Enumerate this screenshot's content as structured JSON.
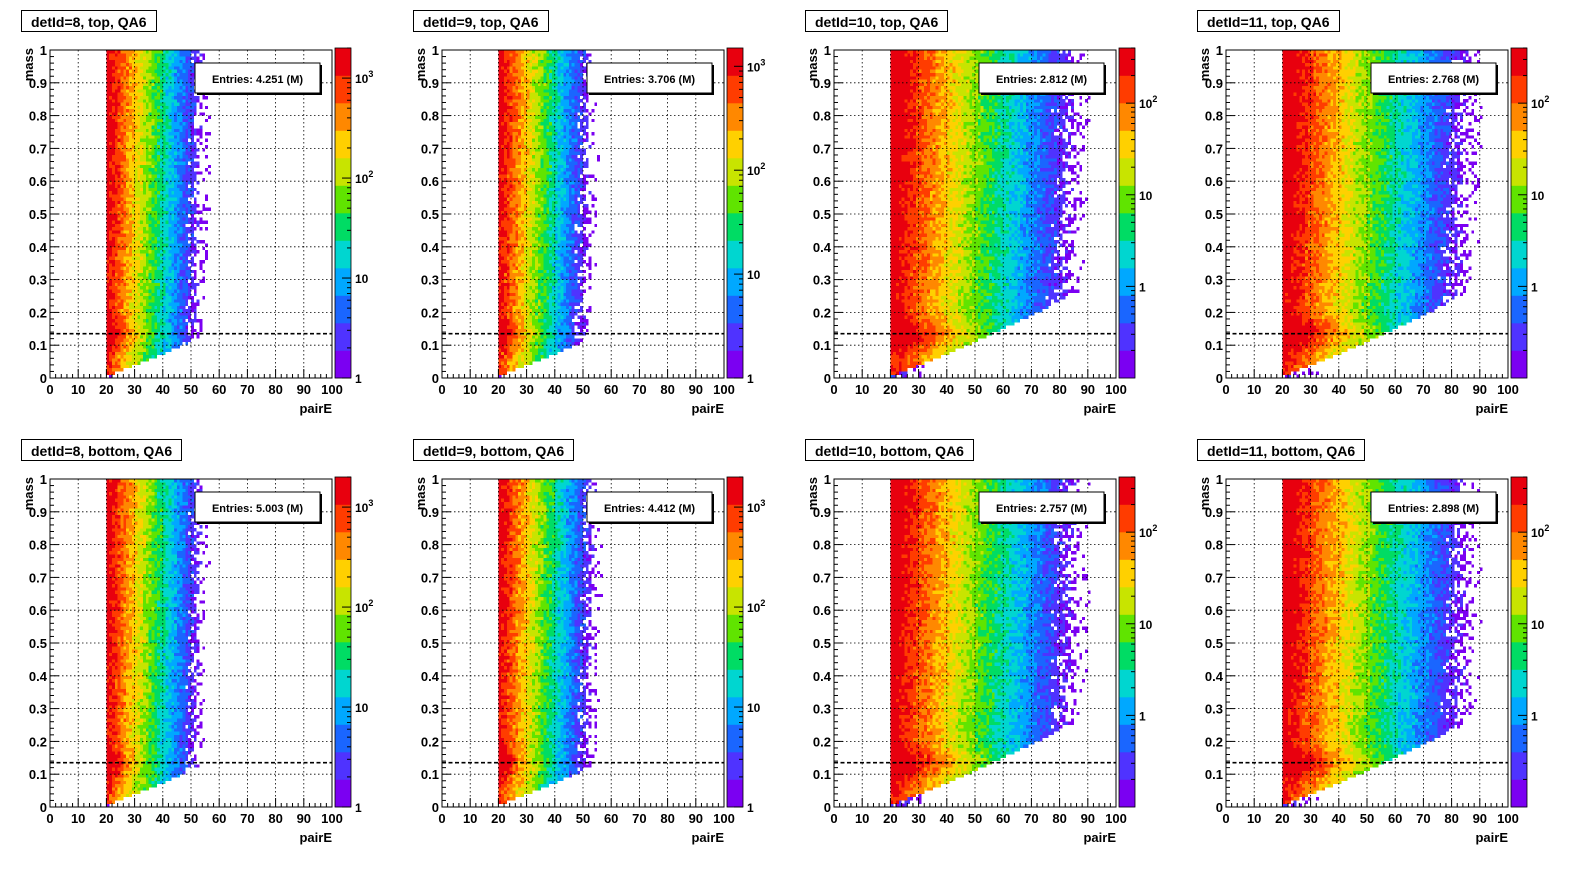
{
  "chart_data": [
    {
      "type": "heatmap",
      "title": "detId=8, top, QA6",
      "xlabel": "pairE",
      "ylabel": "mass",
      "xlim": [
        0,
        100
      ],
      "ylim": [
        0,
        1
      ],
      "x_ticks": [
        "0",
        "10",
        "20",
        "30",
        "40",
        "50",
        "60",
        "70",
        "80",
        "90",
        "100"
      ],
      "y_ticks": [
        "0",
        "0.1",
        "0.2",
        "0.3",
        "0.4",
        "0.5",
        "0.6",
        "0.7",
        "0.8",
        "0.9",
        "1"
      ],
      "entries_label": "Entries: 4.251 (M)",
      "z_scale": "log",
      "z_range": [
        1,
        2000
      ],
      "z_ticks": [
        {
          "value": 1,
          "label": "1"
        },
        {
          "value": 10,
          "label": "10"
        },
        {
          "value": 100,
          "label": "10",
          "exp": "2"
        },
        {
          "value": 1000,
          "label": "10",
          "exp": "3"
        }
      ],
      "pi0_line_mass": 0.135,
      "energy_threshold": 20,
      "grid": true
    },
    {
      "type": "heatmap",
      "title": "detId=9, top, QA6",
      "xlabel": "pairE",
      "ylabel": "mass",
      "xlim": [
        0,
        100
      ],
      "ylim": [
        0,
        1
      ],
      "x_ticks": [
        "0",
        "10",
        "20",
        "30",
        "40",
        "50",
        "60",
        "70",
        "80",
        "90",
        "100"
      ],
      "y_ticks": [
        "0",
        "0.1",
        "0.2",
        "0.3",
        "0.4",
        "0.5",
        "0.6",
        "0.7",
        "0.8",
        "0.9",
        "1"
      ],
      "entries_label": "Entries: 3.706 (M)",
      "z_scale": "log",
      "z_range": [
        1,
        1500
      ],
      "z_ticks": [
        {
          "value": 1,
          "label": "1"
        },
        {
          "value": 10,
          "label": "10"
        },
        {
          "value": 100,
          "label": "10",
          "exp": "2"
        },
        {
          "value": 1000,
          "label": "10",
          "exp": "3"
        }
      ],
      "pi0_line_mass": 0.135,
      "energy_threshold": 20,
      "grid": true
    },
    {
      "type": "heatmap",
      "title": "detId=10, top, QA6",
      "xlabel": "pairE",
      "ylabel": "mass",
      "xlim": [
        0,
        100
      ],
      "ylim": [
        0,
        1
      ],
      "x_ticks": [
        "0",
        "10",
        "20",
        "30",
        "40",
        "50",
        "60",
        "70",
        "80",
        "90",
        "100"
      ],
      "y_ticks": [
        "0",
        "0.1",
        "0.2",
        "0.3",
        "0.4",
        "0.5",
        "0.6",
        "0.7",
        "0.8",
        "0.9",
        "1"
      ],
      "entries_label": "Entries: 2.812 (M)",
      "z_scale": "log",
      "z_range": [
        0.1,
        400
      ],
      "z_ticks": [
        {
          "value": 1,
          "label": "1"
        },
        {
          "value": 10,
          "label": "10"
        },
        {
          "value": 100,
          "label": "10",
          "exp": "2"
        }
      ],
      "pi0_line_mass": 0.135,
      "energy_threshold": 20,
      "grid": true
    },
    {
      "type": "heatmap",
      "title": "detId=11, top, QA6",
      "xlabel": "pairE",
      "ylabel": "mass",
      "xlim": [
        0,
        100
      ],
      "ylim": [
        0,
        1
      ],
      "x_ticks": [
        "0",
        "10",
        "20",
        "30",
        "40",
        "50",
        "60",
        "70",
        "80",
        "90",
        "100"
      ],
      "y_ticks": [
        "0",
        "0.1",
        "0.2",
        "0.3",
        "0.4",
        "0.5",
        "0.6",
        "0.7",
        "0.8",
        "0.9",
        "1"
      ],
      "entries_label": "Entries: 2.768 (M)",
      "z_scale": "log",
      "z_range": [
        0.1,
        400
      ],
      "z_ticks": [
        {
          "value": 1,
          "label": "1"
        },
        {
          "value": 10,
          "label": "10"
        },
        {
          "value": 100,
          "label": "10",
          "exp": "2"
        }
      ],
      "pi0_line_mass": 0.135,
      "energy_threshold": 20,
      "grid": true
    },
    {
      "type": "heatmap",
      "title": "detId=8, bottom, QA6",
      "xlabel": "pairE",
      "ylabel": "mass",
      "xlim": [
        0,
        100
      ],
      "ylim": [
        0,
        1
      ],
      "x_ticks": [
        "0",
        "10",
        "20",
        "30",
        "40",
        "50",
        "60",
        "70",
        "80",
        "90",
        "100"
      ],
      "y_ticks": [
        "0",
        "0.1",
        "0.2",
        "0.3",
        "0.4",
        "0.5",
        "0.6",
        "0.7",
        "0.8",
        "0.9",
        "1"
      ],
      "entries_label": "Entries: 5.003 (M)",
      "z_scale": "log",
      "z_range": [
        1,
        2000
      ],
      "z_ticks": [
        {
          "value": 1,
          "label": "1"
        },
        {
          "value": 10,
          "label": "10"
        },
        {
          "value": 100,
          "label": "10",
          "exp": "2"
        },
        {
          "value": 1000,
          "label": "10",
          "exp": "3"
        }
      ],
      "pi0_line_mass": 0.135,
      "energy_threshold": 20,
      "grid": true
    },
    {
      "type": "heatmap",
      "title": "detId=9, bottom, QA6",
      "xlabel": "pairE",
      "ylabel": "mass",
      "xlim": [
        0,
        100
      ],
      "ylim": [
        0,
        1
      ],
      "x_ticks": [
        "0",
        "10",
        "20",
        "30",
        "40",
        "50",
        "60",
        "70",
        "80",
        "90",
        "100"
      ],
      "y_ticks": [
        "0",
        "0.1",
        "0.2",
        "0.3",
        "0.4",
        "0.5",
        "0.6",
        "0.7",
        "0.8",
        "0.9",
        "1"
      ],
      "entries_label": "Entries: 4.412 (M)",
      "z_scale": "log",
      "z_range": [
        1,
        2000
      ],
      "z_ticks": [
        {
          "value": 1,
          "label": "1"
        },
        {
          "value": 10,
          "label": "10"
        },
        {
          "value": 100,
          "label": "10",
          "exp": "2"
        },
        {
          "value": 1000,
          "label": "10",
          "exp": "3"
        }
      ],
      "pi0_line_mass": 0.135,
      "energy_threshold": 20,
      "grid": true
    },
    {
      "type": "heatmap",
      "title": "detId=10, bottom, QA6",
      "xlabel": "pairE",
      "ylabel": "mass",
      "xlim": [
        0,
        100
      ],
      "ylim": [
        0,
        1
      ],
      "x_ticks": [
        "0",
        "10",
        "20",
        "30",
        "40",
        "50",
        "60",
        "70",
        "80",
        "90",
        "100"
      ],
      "y_ticks": [
        "0",
        "0.1",
        "0.2",
        "0.3",
        "0.4",
        "0.5",
        "0.6",
        "0.7",
        "0.8",
        "0.9",
        "1"
      ],
      "entries_label": "Entries: 2.757 (M)",
      "z_scale": "log",
      "z_range": [
        0.1,
        400
      ],
      "z_ticks": [
        {
          "value": 1,
          "label": "1"
        },
        {
          "value": 10,
          "label": "10"
        },
        {
          "value": 100,
          "label": "10",
          "exp": "2"
        }
      ],
      "pi0_line_mass": 0.135,
      "energy_threshold": 20,
      "grid": true
    },
    {
      "type": "heatmap",
      "title": "detId=11, bottom, QA6",
      "xlabel": "pairE",
      "ylabel": "mass",
      "xlim": [
        0,
        100
      ],
      "ylim": [
        0,
        1
      ],
      "x_ticks": [
        "0",
        "10",
        "20",
        "30",
        "40",
        "50",
        "60",
        "70",
        "80",
        "90",
        "100"
      ],
      "y_ticks": [
        "0",
        "0.1",
        "0.2",
        "0.3",
        "0.4",
        "0.5",
        "0.6",
        "0.7",
        "0.8",
        "0.9",
        "1"
      ],
      "entries_label": "Entries: 2.898 (M)",
      "z_scale": "log",
      "z_range": [
        0.1,
        400
      ],
      "z_ticks": [
        {
          "value": 1,
          "label": "1"
        },
        {
          "value": 10,
          "label": "10"
        },
        {
          "value": 100,
          "label": "10",
          "exp": "2"
        }
      ],
      "pi0_line_mass": 0.135,
      "energy_threshold": 20,
      "grid": true
    }
  ],
  "colors": {
    "palette": [
      "#7b00f2",
      "#4f33ff",
      "#1a66ff",
      "#00a8ff",
      "#00d6d0",
      "#00dc64",
      "#60e400",
      "#c8e400",
      "#ffd000",
      "#ff8800",
      "#ff3c00",
      "#e8000e"
    ],
    "frame": "#000000",
    "grid": "#000000",
    "background": "#ffffff"
  }
}
